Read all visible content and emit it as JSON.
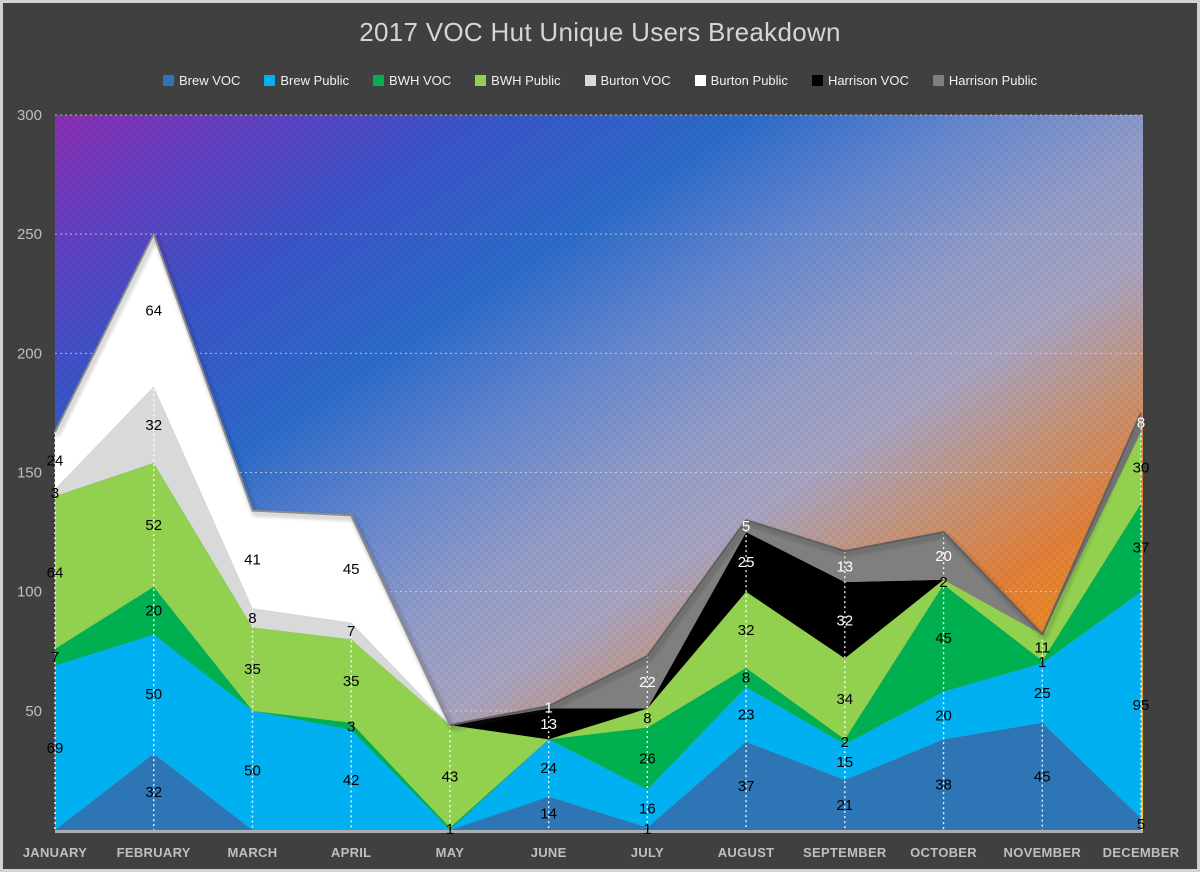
{
  "title": "2017 VOC Hut Unique Users Breakdown",
  "colors": {
    "page_bg": "#404040",
    "frame_border": "#D2D2D2",
    "title_text": "#D6D4D4",
    "legend_text": "#F0F0F0",
    "axis_text": "#BFBFBF",
    "gridline": "#DCDCDC",
    "drop_line": "#FFFFFF",
    "axis_line": "#ADADAD",
    "label_dark": "#000000",
    "label_light": "#FFFFFF"
  },
  "chart_data": {
    "type": "area",
    "stacked": true,
    "title": "2017 VOC Hut Unique Users Breakdown",
    "xlabel": "",
    "ylabel": "",
    "ylim": [
      0,
      300
    ],
    "yticks": [
      50,
      100,
      150,
      200,
      250,
      300
    ],
    "grid": "horizontal-dashed",
    "drop_lines": true,
    "legend_position": "top-center",
    "categories": [
      "JANUARY",
      "FEBRUARY",
      "MARCH",
      "APRIL",
      "MAY",
      "JUNE",
      "JULY",
      "AUGUST",
      "SEPTEMBER",
      "OCTOBER",
      "NOVEMBER",
      "DECEMBER"
    ],
    "series": [
      {
        "name": "Brew VOC",
        "color": "#2E75B6",
        "label_color": "#000000",
        "values": [
          0,
          32,
          0,
          0,
          0,
          14,
          1,
          37,
          21,
          38,
          45,
          5
        ]
      },
      {
        "name": "Brew Public",
        "color": "#00B0F0",
        "label_color": "#000000",
        "values": [
          69,
          50,
          50,
          42,
          0,
          24,
          16,
          23,
          15,
          20,
          25,
          95
        ]
      },
      {
        "name": "BWH VOC",
        "color": "#00B050",
        "label_color": "#000000",
        "values": [
          7,
          20,
          0,
          3,
          1,
          0,
          26,
          8,
          2,
          45,
          1,
          37
        ]
      },
      {
        "name": "BWH Public",
        "color": "#92D050",
        "label_color": "#000000",
        "values": [
          64,
          52,
          35,
          35,
          43,
          0,
          8,
          32,
          34,
          2,
          11,
          30
        ]
      },
      {
        "name": "Burton VOC",
        "color": "#D9D9D9",
        "label_color": "#000000",
        "values": [
          3,
          32,
          8,
          7,
          0,
          0,
          0,
          0,
          0,
          0,
          0,
          0
        ]
      },
      {
        "name": "Burton Public",
        "color": "#FFFFFF",
        "label_color": "#000000",
        "values": [
          24,
          64,
          41,
          45,
          0,
          0,
          0,
          0,
          0,
          0,
          0,
          0
        ]
      },
      {
        "name": "Harrison VOC",
        "color": "#000000",
        "label_color": "#FFFFFF",
        "values": [
          0,
          0,
          0,
          0,
          0,
          13,
          0,
          25,
          32,
          0,
          0,
          0
        ]
      },
      {
        "name": "Harrison Public",
        "color": "#7F7F7F",
        "label_color": "#FFFFFF",
        "values": [
          0,
          0,
          0,
          0,
          0,
          1,
          22,
          5,
          13,
          20,
          0,
          8
        ]
      }
    ],
    "stack_totals": [
      167,
      250,
      134,
      132,
      44,
      52,
      73,
      130,
      117,
      125,
      82,
      175
    ],
    "outlined_series": [
      {
        "name": "Burton Public",
        "outline_color": "#8C8C8C",
        "months": [
          0,
          4
        ]
      },
      {
        "name": "Harrison Public",
        "outline_color": "#5E5E5E",
        "months": [
          4,
          11
        ]
      }
    ],
    "plot_bg_gradient": {
      "direction": "diagonal-topleft-to-bottomright",
      "stops": [
        {
          "offset": 0.0,
          "color": "#8B2FB3"
        },
        {
          "offset": 0.09,
          "color": "#6340C2"
        },
        {
          "offset": 0.2,
          "color": "#3A55C9"
        },
        {
          "offset": 0.32,
          "color": "#2C6BCB"
        },
        {
          "offset": 0.42,
          "color": "#6487D0"
        },
        {
          "offset": 0.52,
          "color": "#939DC9"
        },
        {
          "offset": 0.6,
          "color": "#A8A4C2"
        },
        {
          "offset": 0.68,
          "color": "#C69479"
        },
        {
          "offset": 0.76,
          "color": "#E2803A"
        },
        {
          "offset": 0.84,
          "color": "#ED8D22"
        },
        {
          "offset": 0.92,
          "color": "#F7A91A"
        },
        {
          "offset": 1.0,
          "color": "#FFC60D"
        }
      ]
    }
  }
}
